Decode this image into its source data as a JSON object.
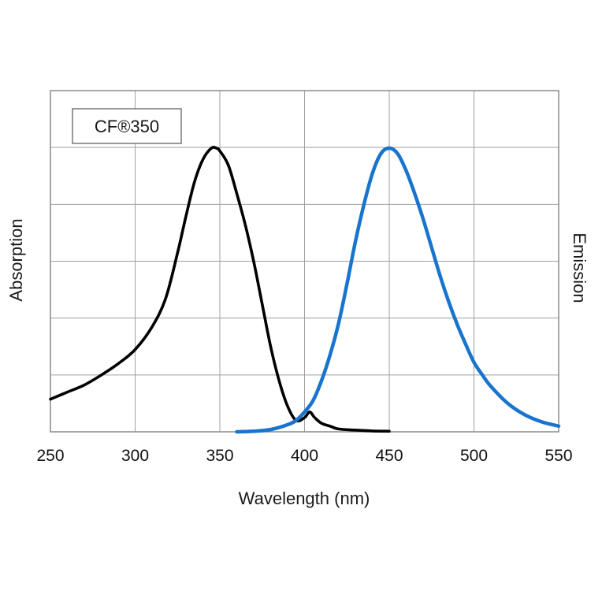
{
  "chart_data": {
    "type": "line",
    "title": "",
    "xlabel": "Wavelength (nm)",
    "ylabel_left": "Absorption",
    "ylabel_right": "Emission",
    "xlim": [
      250,
      550
    ],
    "ylim": [
      0,
      1.2
    ],
    "xticks": [
      250,
      300,
      350,
      400,
      450,
      500,
      550
    ],
    "xtick_labels": [
      "250",
      "300",
      "350",
      "400",
      "450",
      "500",
      "550"
    ],
    "ytick_labels": [],
    "grid": true,
    "legend": {
      "text": "CF®350",
      "placement": "top-left"
    },
    "colors": {
      "absorption": "#000000",
      "emission": "#1874cd",
      "grid": "#a0a0a0"
    },
    "series": [
      {
        "key": "absorption",
        "x": [
          250,
          260,
          270,
          280,
          290,
          300,
          310,
          318,
          325,
          330,
          335,
          340,
          345,
          348,
          350,
          355,
          360,
          365,
          370,
          375,
          380,
          385,
          390,
          395,
          400,
          403,
          406,
          410,
          415,
          420,
          430,
          440,
          450
        ],
        "y": [
          0.115,
          0.14,
          0.165,
          0.2,
          0.24,
          0.29,
          0.37,
          0.47,
          0.63,
          0.76,
          0.88,
          0.96,
          1.0,
          1.0,
          0.99,
          0.94,
          0.84,
          0.73,
          0.6,
          0.45,
          0.3,
          0.18,
          0.09,
          0.04,
          0.05,
          0.07,
          0.05,
          0.03,
          0.02,
          0.01,
          0.006,
          0.003,
          0.002
        ]
      },
      {
        "key": "emission",
        "x": [
          360,
          370,
          380,
          390,
          395,
          400,
          405,
          410,
          415,
          420,
          425,
          430,
          435,
          440,
          445,
          450,
          455,
          460,
          465,
          470,
          475,
          480,
          485,
          490,
          495,
          500,
          505,
          510,
          520,
          530,
          540,
          550
        ],
        "y": [
          0.0,
          0.002,
          0.008,
          0.025,
          0.04,
          0.07,
          0.11,
          0.18,
          0.27,
          0.38,
          0.52,
          0.67,
          0.8,
          0.91,
          0.98,
          1.0,
          0.98,
          0.92,
          0.84,
          0.75,
          0.65,
          0.55,
          0.46,
          0.38,
          0.31,
          0.245,
          0.2,
          0.16,
          0.1,
          0.06,
          0.035,
          0.02
        ]
      }
    ]
  }
}
